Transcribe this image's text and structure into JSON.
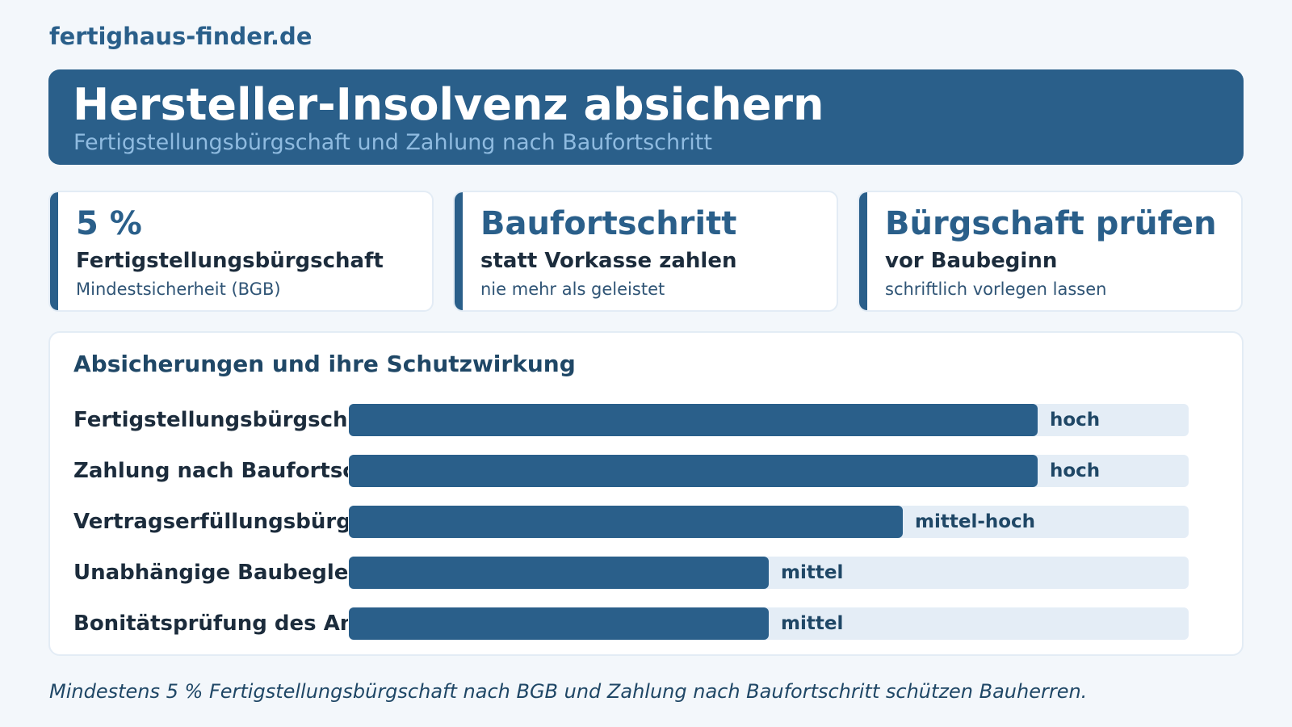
{
  "brand": "fertighaus-finder.de",
  "hero": {
    "title": "Hersteller-Insolvenz absichern",
    "subtitle": "Fertigstellungsbürgschaft und Zahlung nach Baufortschritt"
  },
  "cards": [
    {
      "big": "5 %",
      "mid": "Fertigstellungsbürgschaft",
      "small": "Mindestsicherheit (BGB)"
    },
    {
      "big": "Baufortschritt",
      "mid": "statt Vorkasse zahlen",
      "small": "nie mehr als geleistet"
    },
    {
      "big": "Bürgschaft prüfen",
      "mid": "vor Baubeginn",
      "small": "schriftlich vorlegen lassen"
    }
  ],
  "chart_data": {
    "type": "bar",
    "orientation": "horizontal",
    "title": "Absicherungen und ihre Schutzwirkung",
    "categories": [
      "Fertigstellungsbürgschaft",
      "Zahlung nach Baufortschritt",
      "Vertragserfüllungsbürgschaft",
      "Unabhängige Baubegleitung",
      "Bonitätsprüfung des Anbieters"
    ],
    "values": [
      0.82,
      0.82,
      0.66,
      0.5,
      0.5
    ],
    "value_labels": [
      "hoch",
      "hoch",
      "mittel-hoch",
      "mittel",
      "mittel"
    ],
    "xlim": [
      0,
      1
    ],
    "grid": false,
    "colors": {
      "bar": "#2a5f8a",
      "track": "#e4edf6"
    }
  },
  "footer": "Mindestens 5 % Fertigstellungsbürgschaft nach BGB und Zahlung nach Baufortschritt schützen Bauherren."
}
